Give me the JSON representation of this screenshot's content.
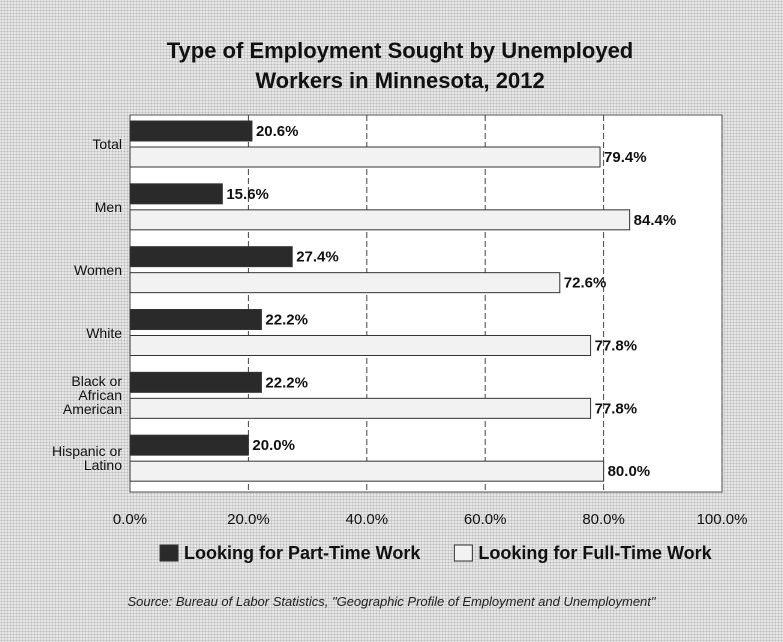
{
  "chart_data": {
    "type": "hbar",
    "title": "Type of Employment Sought by Unemployed Workers in Minnesota, 2012",
    "source": "Source: Bureau of Labor Statistics, \"Geographic Profile of Employment and Unemployment\"",
    "categories": [
      "Total",
      "Men",
      "Women",
      "White",
      "Black or African American",
      "Hispanic or Latino"
    ],
    "series": [
      {
        "name": "Looking for Part-Time Work",
        "color": "#2a2a2a",
        "values": [
          20.6,
          15.6,
          27.4,
          22.2,
          22.2,
          20.0
        ],
        "value_labels": [
          "20.6%",
          "15.6%",
          "27.4%",
          "22.2%",
          "22.2%",
          "20.0%"
        ]
      },
      {
        "name": "Looking for Full-Time Work",
        "color": "#f2f2f2",
        "values": [
          79.4,
          84.4,
          72.6,
          77.8,
          77.8,
          80.0
        ],
        "value_labels": [
          "79.4%",
          "84.4%",
          "72.6%",
          "77.8%",
          "77.8%",
          "80.0%"
        ]
      }
    ],
    "xlim": [
      0,
      100
    ],
    "xticks": [
      {
        "value": 0,
        "label": "0.0%"
      },
      {
        "value": 20,
        "label": "20.0%"
      },
      {
        "value": 40,
        "label": "40.0%"
      },
      {
        "value": 60,
        "label": "60.0%"
      },
      {
        "value": 80,
        "label": "80.0%"
      },
      {
        "value": 100,
        "label": "100.0%"
      }
    ],
    "grid": true,
    "legend": "bottom"
  }
}
